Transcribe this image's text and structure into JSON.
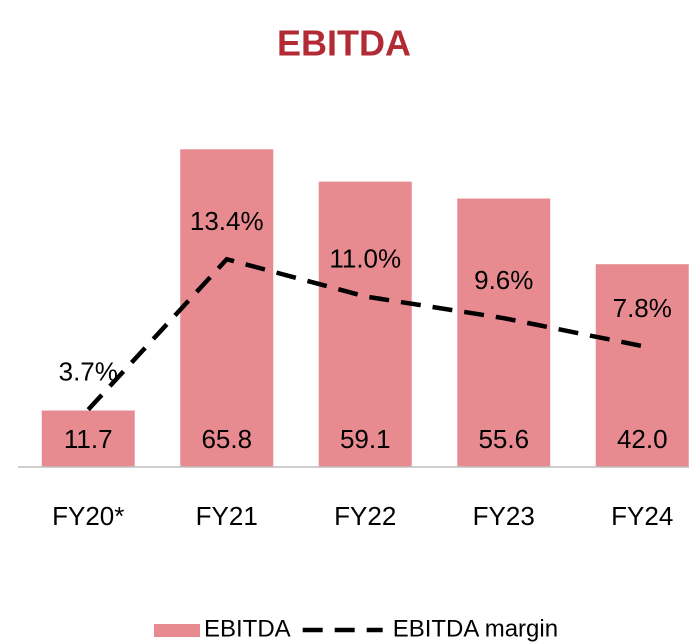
{
  "chart_data": {
    "type": "bar",
    "title": "EBITDA",
    "categories": [
      "FY20*",
      "FY21",
      "FY22",
      "FY23",
      "FY24"
    ],
    "series": [
      {
        "name": "EBITDA",
        "type": "bar",
        "color": "#e88b91",
        "values": [
          11.7,
          65.8,
          59.1,
          55.6,
          42.0
        ],
        "value_labels": [
          "11.7",
          "65.8",
          "59.1",
          "55.6",
          "42.0"
        ]
      },
      {
        "name": "EBITDA margin",
        "type": "line",
        "axis": "y2",
        "color": "#000000",
        "values": [
          3.7,
          13.4,
          11.0,
          9.6,
          7.8
        ],
        "value_labels": [
          "3.7%",
          "13.4%",
          "11.0%",
          "9.6%",
          "7.8%"
        ]
      }
    ],
    "ylim": [
      0,
      70
    ],
    "y2lim": [
      0,
      21.8
    ],
    "grid": false,
    "legend": "bottom"
  }
}
